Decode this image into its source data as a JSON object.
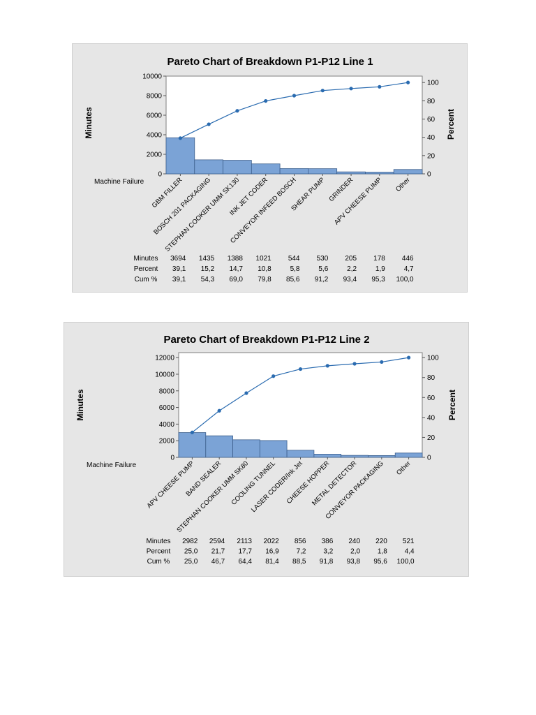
{
  "chart_data": [
    {
      "type": "bar",
      "title": "Pareto Chart of Breakdown P1-P12 Line 1",
      "xlabel": "Machine Failure",
      "ylabel": "Minutes",
      "y2label": "Percent",
      "ylim": [
        0,
        10000
      ],
      "yticks": [
        "0",
        "2000",
        "4000",
        "6000",
        "8000",
        "10000"
      ],
      "y2lim": [
        0,
        107
      ],
      "y2ticks": [
        "0",
        "20",
        "40",
        "60",
        "80",
        "100"
      ],
      "categories": [
        "GBM FILLER",
        "BOSCH 201 PACKAGING",
        "STEPHAN COOKER UMM SK130",
        "INK JET CODER",
        "CONVEYOR INFEED BOSCH",
        "SHEAR PUMP",
        "GRINDER",
        "APV CHEESE PUMP",
        "Other"
      ],
      "values": [
        3694,
        1435,
        1388,
        1021,
        544,
        530,
        205,
        178,
        446
      ],
      "cumulative_percent": [
        39.1,
        54.3,
        69.0,
        79.8,
        85.6,
        91.2,
        93.4,
        95.3,
        100.0
      ],
      "bar_color": "#7ba3d6",
      "line_color": "#2a6bb0",
      "table": {
        "row_labels": [
          "Minutes",
          "Percent",
          "Cum %"
        ],
        "rows": [
          [
            "3694",
            "1435",
            "1388",
            "1021",
            "544",
            "530",
            "205",
            "178",
            "446"
          ],
          [
            "39,1",
            "15,2",
            "14,7",
            "10,8",
            "5,8",
            "5,6",
            "2,2",
            "1,9",
            "4,7"
          ],
          [
            "39,1",
            "54,3",
            "69,0",
            "79,8",
            "85,6",
            "91,2",
            "93,4",
            "95,3",
            "100,0"
          ]
        ]
      }
    },
    {
      "type": "bar",
      "title": "Pareto Chart of Breakdown P1-P12 Line 2",
      "xlabel": "Machine Failure",
      "ylabel": "Minutes",
      "y2label": "Percent",
      "ylim": [
        0,
        12600
      ],
      "yticks": [
        "0",
        "2000",
        "4000",
        "6000",
        "8000",
        "10000",
        "12000"
      ],
      "y2lim": [
        0,
        105
      ],
      "y2ticks": [
        "0",
        "20",
        "40",
        "60",
        "80",
        "100"
      ],
      "categories": [
        "APV CHEESE PUMP",
        "BAND SEALER",
        "STEPHAN COOKER UMM SK80",
        "COOLING TUNNEL",
        "LASER CODER/Ink Jet",
        "CHEESE HOPPER",
        "METAL DETECTOR",
        "CONVEYOR PACKAGING",
        "Other"
      ],
      "values": [
        2982,
        2594,
        2113,
        2022,
        856,
        386,
        240,
        220,
        521
      ],
      "cumulative_percent": [
        25.0,
        46.7,
        64.4,
        81.4,
        88.5,
        91.8,
        93.8,
        95.6,
        100.0
      ],
      "bar_color": "#7ba3d6",
      "line_color": "#2a6bb0",
      "table": {
        "row_labels": [
          "Minutes",
          "Percent",
          "Cum %"
        ],
        "rows": [
          [
            "2982",
            "2594",
            "2113",
            "2022",
            "856",
            "386",
            "240",
            "220",
            "521"
          ],
          [
            "25,0",
            "21,7",
            "17,7",
            "16,9",
            "7,2",
            "3,2",
            "2,0",
            "1,8",
            "4,4"
          ],
          [
            "25,0",
            "46,7",
            "64,4",
            "81,4",
            "88,5",
            "91,8",
            "93,8",
            "95,6",
            "100,0"
          ]
        ]
      }
    }
  ]
}
